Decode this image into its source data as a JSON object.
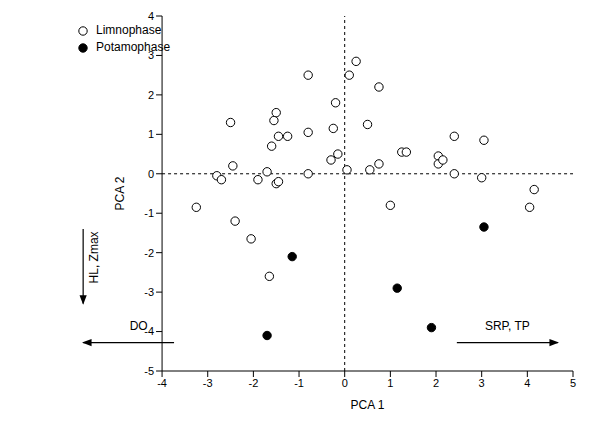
{
  "chart_data": {
    "type": "scatter",
    "x_label": "PCA 1",
    "y_label": "PCA 2",
    "xlim": [
      -4,
      5
    ],
    "ylim": [
      -5,
      4
    ],
    "xticks": [
      -4,
      -3,
      -2,
      -1,
      0,
      1,
      2,
      3,
      4,
      5
    ],
    "yticks": [
      -5,
      -4,
      -3,
      -2,
      -1,
      0,
      1,
      2,
      3,
      4
    ],
    "legend": "upper left",
    "annotations": [
      "DO",
      "SRP, TP",
      "HL, Zmax"
    ],
    "series": [
      {
        "name": "Limnophase",
        "color": "#000000",
        "marker": "open_circle",
        "x": [
          -3.25,
          -2.8,
          -2.7,
          -2.5,
          -2.45,
          -2.4,
          -2.05,
          -1.9,
          -1.7,
          -1.65,
          -1.6,
          -1.55,
          -1.5,
          -1.5,
          -1.45,
          -1.45,
          -1.25,
          -0.8,
          -0.8,
          -0.8,
          -0.3,
          -0.25,
          -0.2,
          -0.15,
          0.05,
          0.1,
          0.25,
          0.5,
          0.55,
          0.75,
          0.75,
          1.0,
          1.25,
          1.35,
          2.05,
          2.05,
          2.15,
          2.4,
          2.4,
          3.0,
          3.05,
          4.05,
          4.15
        ],
        "y": [
          -0.85,
          -0.05,
          -0.15,
          1.3,
          0.2,
          -1.2,
          -1.65,
          -0.15,
          0.05,
          -2.6,
          0.7,
          1.35,
          1.55,
          -0.25,
          0.95,
          -0.2,
          0.95,
          2.5,
          1.05,
          0.0,
          0.35,
          1.15,
          1.8,
          0.5,
          0.1,
          2.5,
          2.85,
          1.25,
          0.1,
          0.25,
          2.2,
          -0.8,
          0.55,
          0.55,
          0.45,
          0.25,
          0.35,
          0.95,
          0.0,
          -0.1,
          0.85,
          -0.85,
          -0.4
        ]
      },
      {
        "name": "Potamophase",
        "color": "#000000",
        "marker": "filled_circle",
        "x": [
          -1.7,
          -1.15,
          1.15,
          1.9,
          3.05
        ],
        "y": [
          -4.1,
          -2.1,
          -2.9,
          -3.9,
          -1.35
        ]
      }
    ]
  }
}
